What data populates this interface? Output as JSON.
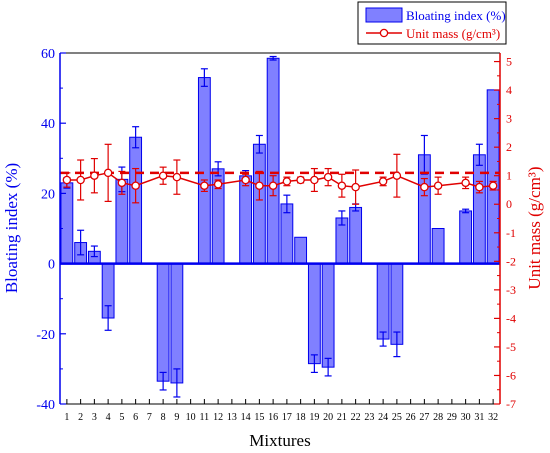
{
  "chart_data": {
    "type": "bar",
    "xlabel": "Mixtures",
    "ylabel_left": "Bloating index (%)",
    "ylabel_right": "Unit mass (g/cm³)",
    "categories": [
      "1",
      "2",
      "3",
      "4",
      "5",
      "6",
      "7",
      "8",
      "9",
      "10",
      "11",
      "12",
      "13",
      "14",
      "15",
      "16",
      "17",
      "18",
      "19",
      "20",
      "21",
      "22",
      "23",
      "24",
      "25",
      "26",
      "27",
      "28",
      "29",
      "30",
      "31",
      "32"
    ],
    "left_axis": {
      "ylim": [
        -40,
        60
      ],
      "ticks": [
        -40,
        -20,
        0,
        20,
        40,
        60
      ]
    },
    "right_axis": {
      "ylim": [
        -7,
        5.3
      ],
      "ticks": [
        -7,
        -6,
        -5,
        -4,
        -3,
        -2,
        -1,
        0,
        1,
        2,
        3,
        4,
        5
      ]
    },
    "legend": {
      "position": "top-right",
      "entries": [
        "Bloating index (%)",
        "Unit mass (g/cm³)"
      ]
    },
    "series": [
      {
        "name": "Bloating index (%)",
        "kind": "bar",
        "axis": "left",
        "color": "#0000ee",
        "fill": "#8080ff",
        "values": [
          23,
          6,
          3.5,
          -15.5,
          24,
          36,
          null,
          -33.5,
          -34,
          null,
          53,
          27,
          null,
          25,
          34,
          58.5,
          17,
          7.5,
          -28.5,
          -29.5,
          13,
          16,
          null,
          -21.5,
          -23,
          null,
          31,
          10,
          null,
          15,
          31,
          49.5
        ],
        "errors": [
          1.5,
          3.5,
          1.5,
          3.5,
          3.5,
          3,
          null,
          2.5,
          4,
          null,
          2.5,
          2,
          null,
          1.5,
          2.5,
          0.5,
          2.5,
          0,
          2.5,
          2.5,
          2,
          1,
          null,
          2,
          3.5,
          null,
          5.5,
          0,
          null,
          0.5,
          3,
          0
        ]
      },
      {
        "name": "Unit mass (g/cm³)",
        "kind": "line",
        "axis": "right",
        "color": "#e00000",
        "values": [
          0.85,
          0.85,
          1.0,
          1.1,
          0.75,
          0.65,
          null,
          1.0,
          0.95,
          null,
          0.65,
          0.7,
          null,
          0.85,
          0.65,
          0.65,
          0.8,
          0.85,
          0.85,
          0.95,
          0.65,
          0.6,
          null,
          0.8,
          1.0,
          null,
          0.6,
          0.65,
          null,
          0.75,
          0.6,
          0.65
        ],
        "errors": [
          0.25,
          0.7,
          0.6,
          1.0,
          0.4,
          0.6,
          null,
          0.3,
          0.6,
          null,
          0.2,
          0.15,
          null,
          0.2,
          0.5,
          0.35,
          0.15,
          0.1,
          0.4,
          0.3,
          0.4,
          0.6,
          null,
          0.15,
          0.75,
          null,
          0.3,
          0.3,
          null,
          0.2,
          0.2,
          0.15
        ]
      }
    ],
    "reference_line": {
      "axis": "right",
      "value": 1.1,
      "style": "dashed",
      "color": "#e00000"
    }
  }
}
